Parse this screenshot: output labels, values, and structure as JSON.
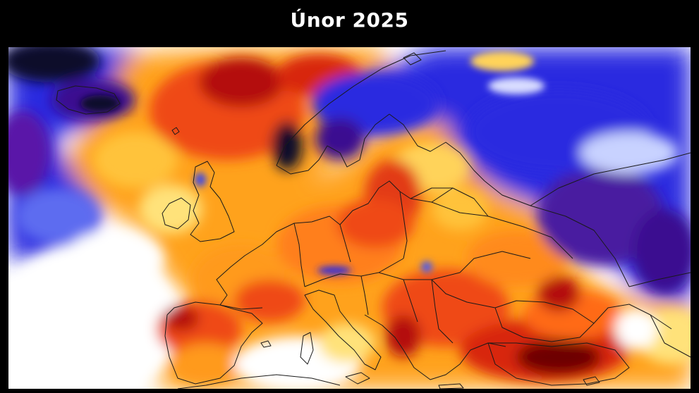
{
  "title": "Únor 2025",
  "map": {
    "region": "Europe",
    "colors": {
      "very_cold": "#0a0a2a",
      "cold_purple": "#5a16a8",
      "cold_blue": "#2a2ae0",
      "cool": "#8fa8ff",
      "neutral": "#ffffff",
      "mild_warm": "#ffe27a",
      "warm": "#ffa21f",
      "hot": "#ef4a14",
      "very_hot": "#b40e0e",
      "extreme": "#6e0505",
      "borders": "#1a1a1a"
    }
  }
}
